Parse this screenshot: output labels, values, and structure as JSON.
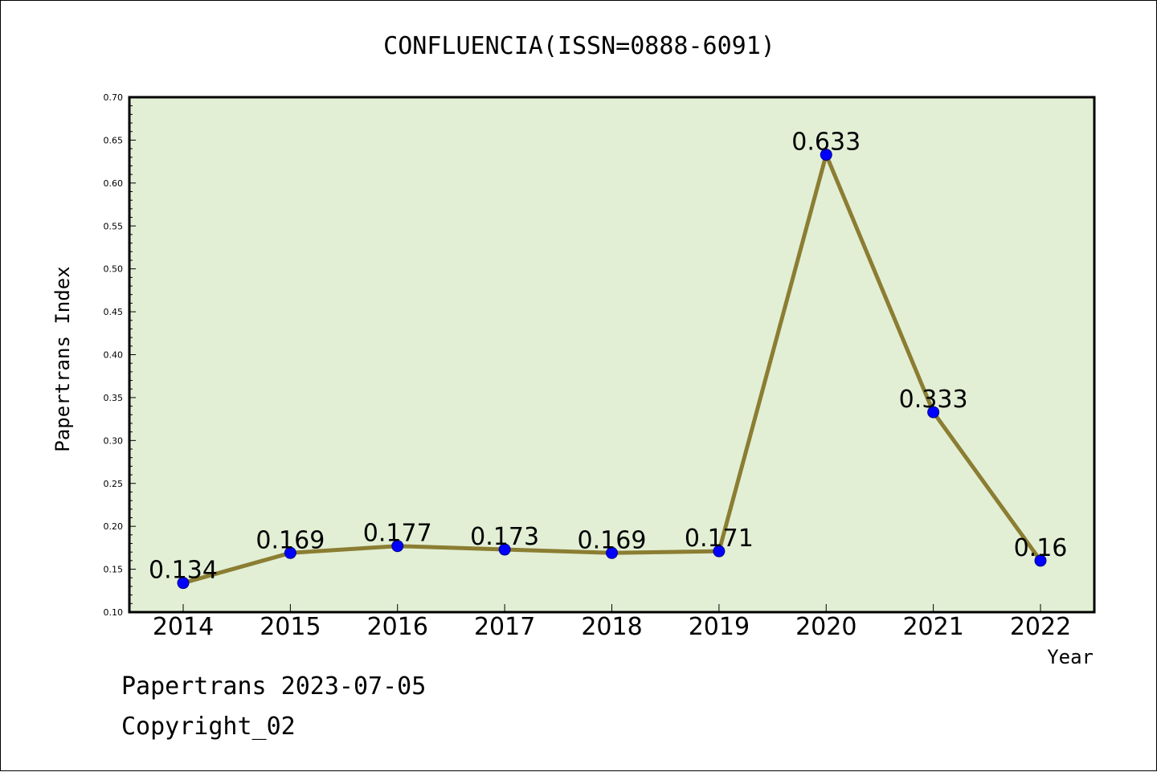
{
  "chart_data": {
    "type": "line",
    "title": "CONFLUENCIA(ISSN=0888-6091)",
    "xlabel": "Year",
    "ylabel": "Papertrans Index",
    "categories": [
      "2014",
      "2015",
      "2016",
      "2017",
      "2018",
      "2019",
      "2020",
      "2021",
      "2022"
    ],
    "values": [
      0.134,
      0.169,
      0.177,
      0.173,
      0.169,
      0.171,
      0.633,
      0.333,
      0.16
    ],
    "data_labels": [
      "0.134",
      "0.169",
      "0.177",
      "0.173",
      "0.169",
      "0.171",
      "0.633",
      "0.333",
      "0.16"
    ],
    "ylim": [
      0.1,
      0.7
    ],
    "yticks": [
      "0.10",
      "0.15",
      "0.20",
      "0.25",
      "0.30",
      "0.35",
      "0.40",
      "0.45",
      "0.50",
      "0.55",
      "0.60",
      "0.65",
      "0.70"
    ],
    "grid": false,
    "colors": {
      "plot_background": "#e2efd5",
      "line": "#8b7d32",
      "marker": "#0000ff"
    }
  },
  "footer": {
    "line1": "Papertrans 2023-07-05",
    "line2": "Copyright_02"
  }
}
